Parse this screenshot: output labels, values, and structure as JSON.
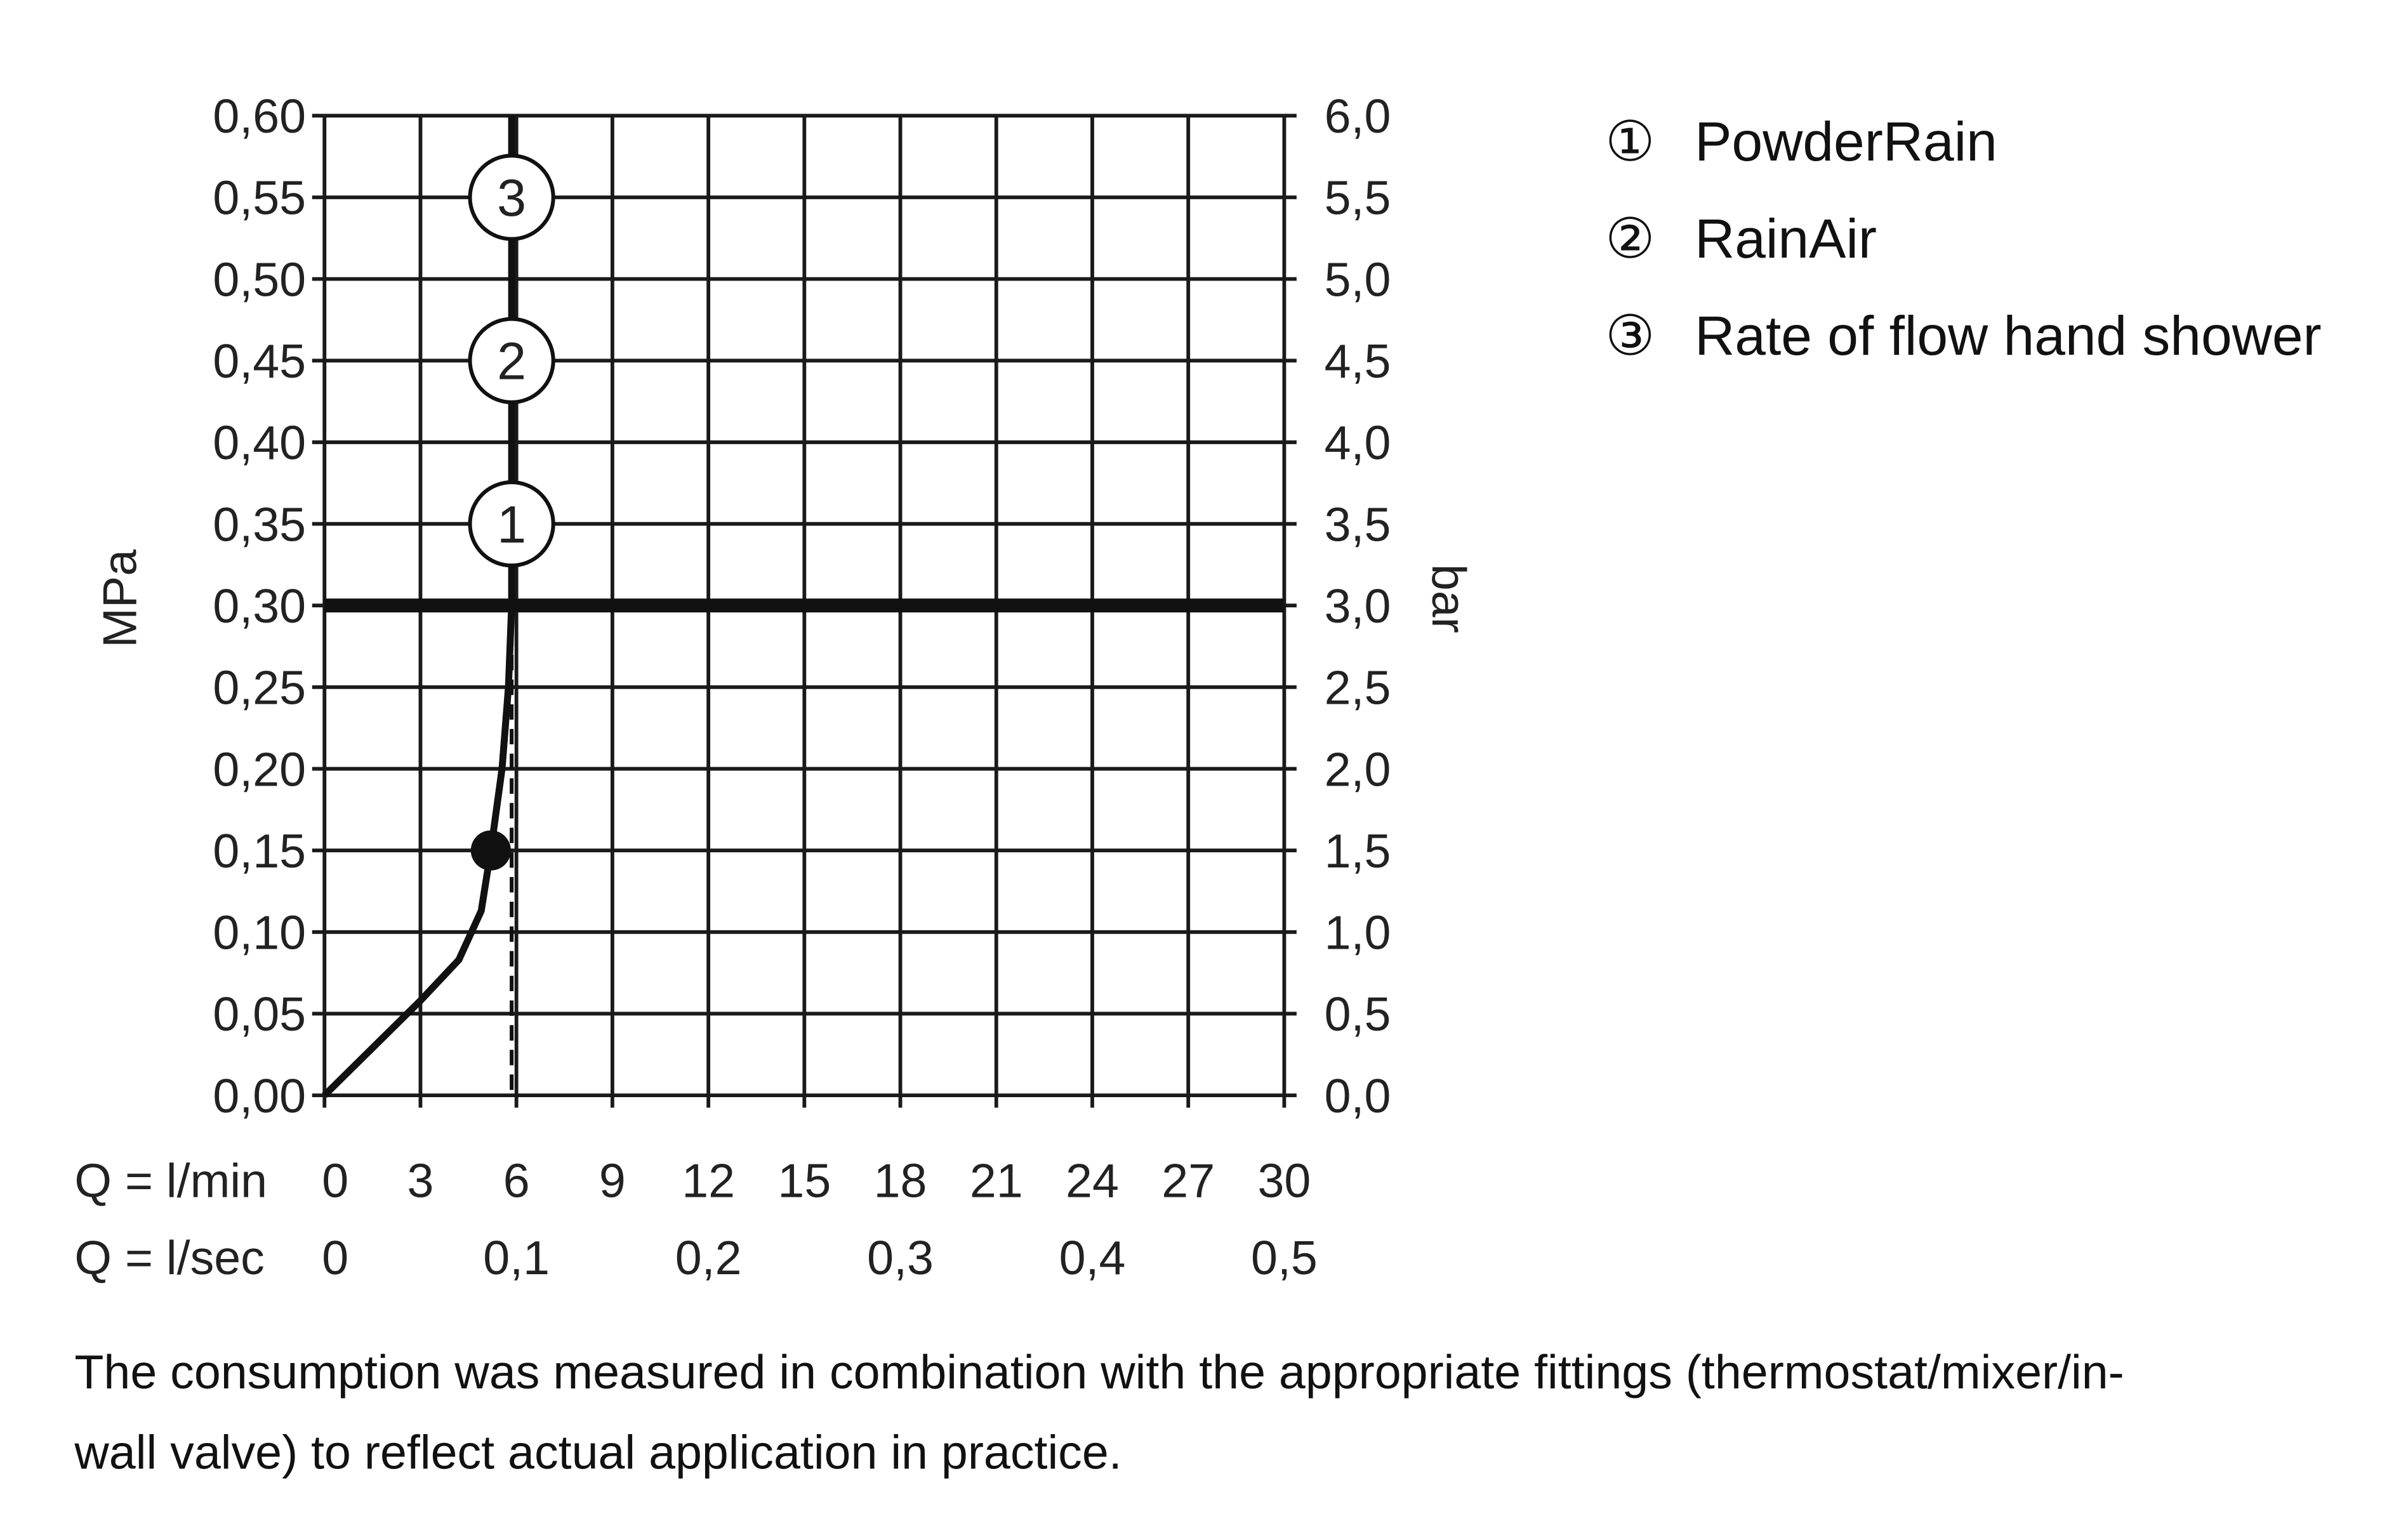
{
  "chart_data": {
    "type": "line",
    "xlabel_rows": [
      "Q = l/min",
      "Q = l/sec"
    ],
    "ylabel_left": "MPa",
    "ylabel_right": "bar",
    "xlim": [
      0,
      30
    ],
    "ylim": [
      0,
      0.6
    ],
    "grid": true,
    "x_ticks_lmin": [
      "0",
      "3",
      "6",
      "9",
      "12",
      "15",
      "18",
      "21",
      "24",
      "27",
      "30"
    ],
    "x_ticks_lsec": [
      {
        "v": 0,
        "label": "0"
      },
      {
        "v": 6,
        "label": "0,1"
      },
      {
        "v": 12,
        "label": "0,2"
      },
      {
        "v": 18,
        "label": "0,3"
      },
      {
        "v": 24,
        "label": "0,4"
      },
      {
        "v": 30,
        "label": "0,5"
      }
    ],
    "y_ticks_left": [
      "0,00",
      "0,05",
      "0,10",
      "0,15",
      "0,20",
      "0,25",
      "0,30",
      "0,35",
      "0,40",
      "0,45",
      "0,50",
      "0,55",
      "0,60"
    ],
    "y_ticks_right": [
      "0,0",
      "0,5",
      "1,0",
      "1,5",
      "2,0",
      "2,5",
      "3,0",
      "3,5",
      "4,0",
      "4,5",
      "5,0",
      "5,5",
      "6,0"
    ],
    "reference_pressure_line": 0.3,
    "series": [
      {
        "x": [
          0,
          3,
          4.2,
          4.9,
          5.2,
          5.55,
          5.75,
          5.85,
          5.85
        ],
        "y": [
          0,
          0.058,
          0.083,
          0.113,
          0.15,
          0.2,
          0.25,
          0.3,
          0.6
        ]
      }
    ],
    "marked_point": {
      "x": 5.2,
      "y": 0.15
    },
    "dashed_flow_line_x": 5.85,
    "curve_markers": [
      {
        "label": "1",
        "y": 0.35
      },
      {
        "label": "2",
        "y": 0.45
      },
      {
        "label": "3",
        "y": 0.55
      }
    ],
    "legend": [
      {
        "symbol": "①",
        "label": "PowderRain"
      },
      {
        "symbol": "②",
        "label": "RainAir"
      },
      {
        "symbol": "③",
        "label": "Rate of flow hand shower"
      }
    ],
    "legend_placement": "right",
    "colors": {
      "line": "#111111",
      "grid": "#1a1a1a"
    }
  },
  "footnote": [
    "The consumption was measured in combination with the appropriate fittings (thermostat/mixer/in-",
    "wall valve) to reflect actual application in practice."
  ]
}
